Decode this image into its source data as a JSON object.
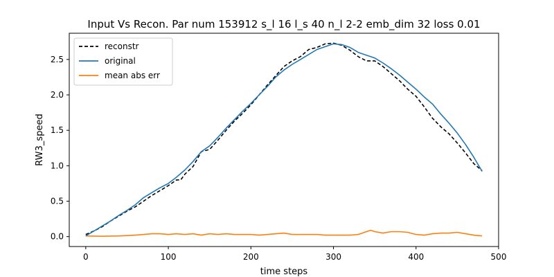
{
  "chart_data": {
    "type": "line",
    "title": "Input Vs Recon. Par num 153912 s_l 16 l_s 40 n_l 2-2 emb_dim 32 loss 0.01",
    "xlabel": "time steps",
    "ylabel": "RW3_speed",
    "xlim": [
      -20,
      500
    ],
    "ylim": [
      -0.14,
      2.87
    ],
    "x_ticks": [
      0,
      100,
      200,
      300,
      400,
      500
    ],
    "x_tick_labels": [
      "0",
      "100",
      "200",
      "300",
      "400",
      "500"
    ],
    "y_ticks": [
      0.0,
      0.5,
      1.0,
      1.5,
      2.0,
      2.5
    ],
    "y_tick_labels": [
      "0.0",
      "0.5",
      "1.0",
      "1.5",
      "2.0",
      "2.5"
    ],
    "grid": false,
    "legend_position": "upper-left",
    "series": [
      {
        "name": "reconstr",
        "style": "dashed",
        "color": "#000000",
        "x": [
          0,
          10,
          20,
          30,
          40,
          50,
          60,
          70,
          80,
          90,
          100,
          110,
          115,
          120,
          130,
          140,
          150,
          160,
          170,
          180,
          190,
          200,
          210,
          220,
          230,
          240,
          250,
          260,
          270,
          280,
          290,
          300,
          310,
          320,
          330,
          340,
          350,
          360,
          370,
          380,
          390,
          400,
          410,
          420,
          430,
          440,
          450,
          460,
          470,
          480
        ],
        "y": [
          0.03,
          0.08,
          0.14,
          0.22,
          0.29,
          0.36,
          0.42,
          0.5,
          0.58,
          0.65,
          0.72,
          0.8,
          0.8,
          0.88,
          0.99,
          1.2,
          1.23,
          1.36,
          1.5,
          1.63,
          1.74,
          1.86,
          2.0,
          2.14,
          2.27,
          2.4,
          2.48,
          2.54,
          2.64,
          2.67,
          2.72,
          2.73,
          2.7,
          2.63,
          2.54,
          2.48,
          2.48,
          2.4,
          2.3,
          2.2,
          2.08,
          1.98,
          1.83,
          1.67,
          1.55,
          1.45,
          1.32,
          1.18,
          1.03,
          0.93
        ]
      },
      {
        "name": "original",
        "style": "solid",
        "color": "#1f77b4",
        "x": [
          0,
          10,
          20,
          30,
          40,
          50,
          60,
          70,
          80,
          90,
          100,
          110,
          120,
          130,
          140,
          150,
          160,
          170,
          180,
          190,
          200,
          210,
          220,
          230,
          240,
          250,
          260,
          270,
          280,
          290,
          300,
          310,
          320,
          330,
          340,
          350,
          360,
          370,
          380,
          390,
          400,
          410,
          420,
          430,
          440,
          450,
          460,
          470,
          480
        ],
        "y": [
          0.01,
          0.08,
          0.15,
          0.22,
          0.3,
          0.37,
          0.45,
          0.55,
          0.62,
          0.69,
          0.75,
          0.84,
          0.94,
          1.06,
          1.2,
          1.28,
          1.4,
          1.53,
          1.65,
          1.77,
          1.88,
          2.0,
          2.12,
          2.25,
          2.35,
          2.43,
          2.5,
          2.57,
          2.64,
          2.68,
          2.72,
          2.71,
          2.67,
          2.6,
          2.56,
          2.52,
          2.45,
          2.37,
          2.28,
          2.18,
          2.08,
          1.97,
          1.87,
          1.73,
          1.6,
          1.46,
          1.3,
          1.12,
          0.92
        ]
      },
      {
        "name": "mean abs err",
        "style": "solid",
        "color": "#ff7f0e",
        "x": [
          0,
          20,
          40,
          60,
          70,
          80,
          90,
          100,
          110,
          120,
          130,
          140,
          150,
          160,
          170,
          180,
          190,
          200,
          210,
          220,
          230,
          240,
          250,
          260,
          270,
          280,
          290,
          300,
          310,
          320,
          330,
          340,
          345,
          350,
          360,
          370,
          380,
          390,
          400,
          410,
          420,
          430,
          440,
          450,
          460,
          470,
          480
        ],
        "y": [
          0.01,
          0.005,
          0.01,
          0.02,
          0.03,
          0.04,
          0.04,
          0.03,
          0.04,
          0.03,
          0.04,
          0.02,
          0.04,
          0.03,
          0.04,
          0.03,
          0.03,
          0.03,
          0.02,
          0.03,
          0.04,
          0.05,
          0.03,
          0.03,
          0.03,
          0.03,
          0.02,
          0.02,
          0.02,
          0.02,
          0.03,
          0.07,
          0.09,
          0.07,
          0.05,
          0.07,
          0.07,
          0.06,
          0.03,
          0.02,
          0.04,
          0.05,
          0.05,
          0.06,
          0.04,
          0.02,
          0.01
        ]
      }
    ]
  }
}
